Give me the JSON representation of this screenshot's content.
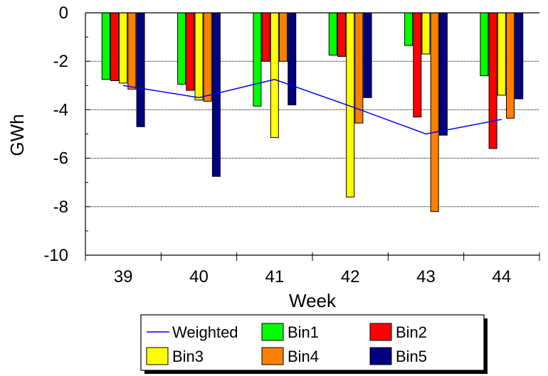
{
  "chart_data": {
    "type": "bar",
    "title": "",
    "xlabel": "Week",
    "ylabel": "GWh",
    "categories": [
      "39",
      "40",
      "41",
      "42",
      "43",
      "44"
    ],
    "ylim": [
      -10,
      0
    ],
    "yticks": [
      0,
      -2,
      -4,
      -6,
      -8,
      -10
    ],
    "grid": true,
    "legend_position": "bottom",
    "series": [
      {
        "name": "Bin1",
        "type": "bar",
        "color": "#00ff00",
        "values": [
          -2.75,
          -2.95,
          -3.85,
          -1.75,
          -1.35,
          -2.6
        ]
      },
      {
        "name": "Bin2",
        "type": "bar",
        "color": "#ff0000",
        "values": [
          -2.8,
          -3.2,
          -2.0,
          -1.8,
          -4.3,
          -5.6
        ]
      },
      {
        "name": "Bin3",
        "type": "bar",
        "color": "#ffff00",
        "values": [
          -2.9,
          -3.6,
          -5.15,
          -7.6,
          -1.7,
          -3.4
        ]
      },
      {
        "name": "Bin4",
        "type": "bar",
        "color": "#ff8000",
        "values": [
          -3.15,
          -3.65,
          -2.0,
          -4.55,
          -8.2,
          -4.35
        ]
      },
      {
        "name": "Bin5",
        "type": "bar",
        "color": "#000080",
        "values": [
          -4.7,
          -6.75,
          -3.8,
          -3.5,
          -5.05,
          -3.55
        ]
      },
      {
        "name": "Weighted",
        "type": "line",
        "color": "#0000ff",
        "values": [
          -3.0,
          -3.5,
          -2.75,
          -3.85,
          -5.0,
          -4.4
        ]
      }
    ]
  }
}
